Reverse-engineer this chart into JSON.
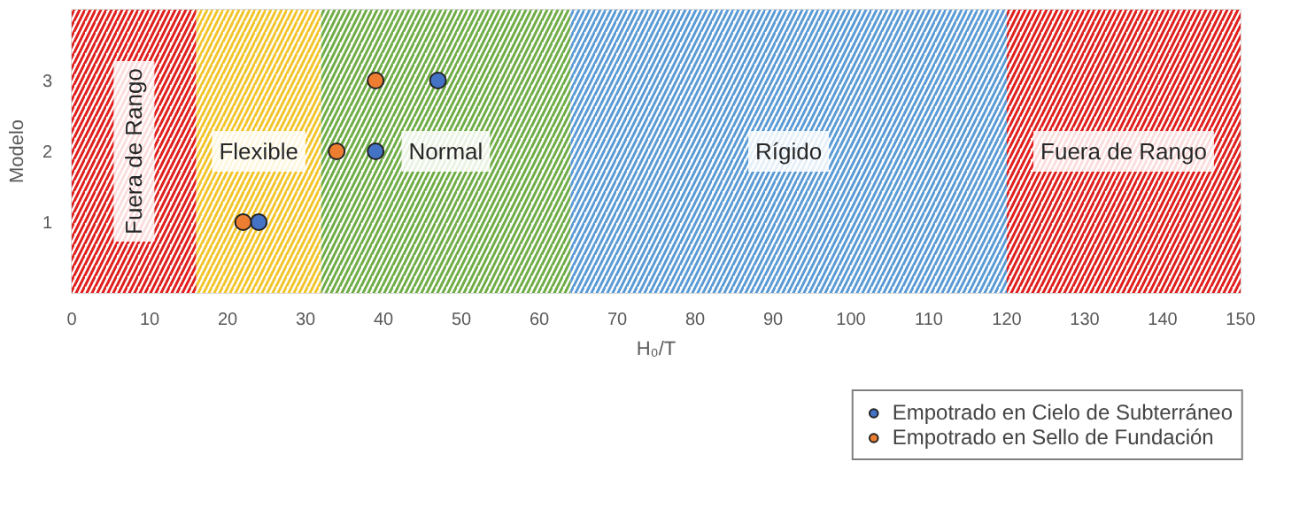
{
  "chart_data": {
    "type": "scatter",
    "xlabel": "H₀/T",
    "ylabel": "Modelo",
    "xlim": [
      0,
      150
    ],
    "xticks": [
      0,
      10,
      20,
      30,
      40,
      50,
      60,
      70,
      80,
      90,
      100,
      110,
      120,
      130,
      140,
      150
    ],
    "ylim": [
      0,
      4
    ],
    "yticks": [
      1,
      2,
      3
    ],
    "series": [
      {
        "name": "Empotrado en Cielo de Subterráneo",
        "color": "#4472c4",
        "x": [
          24,
          39,
          47
        ],
        "values": [
          1,
          2,
          3
        ]
      },
      {
        "name": "Empotrado en Sello de Fundación",
        "color": "#ed7d31",
        "x": [
          22,
          34,
          39
        ],
        "values": [
          1,
          2,
          3
        ]
      }
    ],
    "bands": [
      {
        "axis": "x",
        "from": 0,
        "to": 16,
        "label": "Fuera de Rango",
        "color": "#e0201e"
      },
      {
        "axis": "x",
        "from": 16,
        "to": 32,
        "label": "Flexible",
        "color": "#f2c52c"
      },
      {
        "axis": "x",
        "from": 32,
        "to": 64,
        "label": "Normal",
        "color": "#70ad47"
      },
      {
        "axis": "x",
        "from": 64,
        "to": 120,
        "label": "Rígido",
        "color": "#5b9bd5"
      },
      {
        "axis": "x",
        "from": 120,
        "to": 150,
        "label": "Fuera de Rango",
        "color": "#e0201e"
      }
    ],
    "marker": "circle",
    "grid": false,
    "legend": "bottom right"
  }
}
